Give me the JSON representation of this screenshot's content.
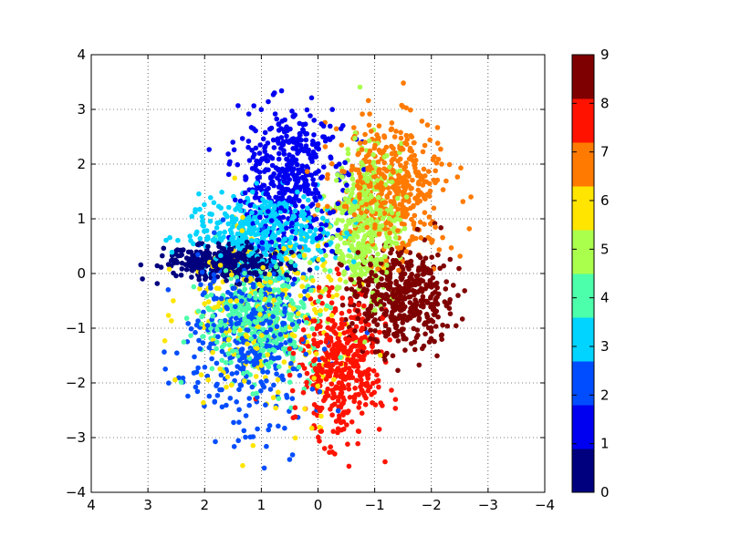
{
  "chart_data": {
    "type": "scatter",
    "title": "",
    "xlabel": "",
    "ylabel": "",
    "xlim": [
      4,
      -4
    ],
    "ylim": [
      -4,
      4
    ],
    "x_ticks": [
      4,
      3,
      2,
      1,
      0,
      -1,
      -2,
      -3,
      -4
    ],
    "y_ticks": [
      -4,
      -3,
      -2,
      -1,
      0,
      1,
      2,
      3,
      4
    ],
    "grid": true,
    "colorbar": {
      "min": 0,
      "max": 9,
      "ticks": [
        0,
        1,
        2,
        3,
        4,
        5,
        6,
        7,
        8,
        9
      ],
      "colors": [
        "#00007f",
        "#0000f1",
        "#004dff",
        "#00d4ff",
        "#4cffaa",
        "#aaff4c",
        "#ffe500",
        "#ff7a00",
        "#ff1300",
        "#7f0000"
      ]
    },
    "clusters": [
      {
        "class": 0,
        "center": [
          1.6,
          0.2
        ],
        "spread": [
          0.55,
          0.15
        ],
        "count": 420
      },
      {
        "class": 1,
        "center": [
          0.5,
          1.75
        ],
        "spread": [
          0.45,
          0.65
        ],
        "count": 460
      },
      {
        "class": 2,
        "center": [
          1.2,
          -1.2
        ],
        "spread": [
          0.55,
          0.75
        ],
        "count": 420
      },
      {
        "class": 3,
        "center": [
          0.9,
          0.75
        ],
        "spread": [
          0.6,
          0.35
        ],
        "count": 420
      },
      {
        "class": 4,
        "center": [
          1.0,
          -0.8
        ],
        "spread": [
          0.5,
          0.55
        ],
        "count": 420
      },
      {
        "class": 5,
        "center": [
          -0.85,
          0.9
        ],
        "spread": [
          0.3,
          0.7
        ],
        "count": 420
      },
      {
        "class": 6,
        "center": [
          0.9,
          -0.7
        ],
        "spread": [
          0.7,
          0.9
        ],
        "count": 260
      },
      {
        "class": 7,
        "center": [
          -1.3,
          1.5
        ],
        "spread": [
          0.5,
          0.6
        ],
        "count": 460
      },
      {
        "class": 8,
        "center": [
          -0.4,
          -1.7
        ],
        "spread": [
          0.35,
          0.65
        ],
        "count": 420
      },
      {
        "class": 9,
        "center": [
          -1.5,
          -0.45
        ],
        "spread": [
          0.45,
          0.45
        ],
        "count": 460
      }
    ]
  }
}
